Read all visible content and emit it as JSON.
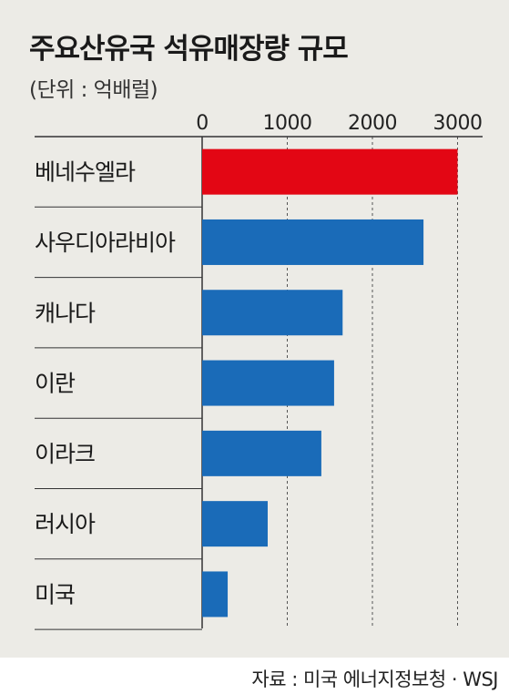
{
  "title": "주요산유국 석유매장량 규모",
  "unit_label": "(단위 : 억배럴)",
  "source": "자료 : 미국 에너지정보청 · WSJ",
  "colors": {
    "highlight": "#e30614",
    "bar": "#1a6bb8",
    "background": "#ecebe6"
  },
  "chart_data": {
    "type": "bar",
    "orientation": "horizontal",
    "categories": [
      "베네수엘라",
      "사우디아라비아",
      "캐나다",
      "이란",
      "이라크",
      "러시아",
      "미국"
    ],
    "values": [
      3000,
      2600,
      1650,
      1550,
      1400,
      770,
      300
    ],
    "x_ticks": [
      "0",
      "1000",
      "2000",
      "3000"
    ],
    "xlim": [
      0,
      3000
    ],
    "grid": "vertical dashed",
    "highlight_index": 0
  }
}
